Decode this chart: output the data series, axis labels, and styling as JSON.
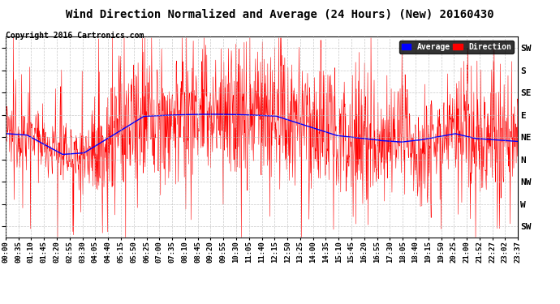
{
  "title": "Wind Direction Normalized and Average (24 Hours) (New) 20160430",
  "copyright": "Copyright 2016 Cartronics.com",
  "ytick_labels_right": [
    "SW",
    "S",
    "SE",
    "E",
    "NE",
    "N",
    "NW",
    "W",
    "SW"
  ],
  "ytick_values": [
    225,
    180,
    135,
    90,
    45,
    0,
    -45,
    -90,
    -135
  ],
  "xtick_labels": [
    "00:00",
    "00:35",
    "01:10",
    "01:45",
    "02:20",
    "02:55",
    "03:30",
    "04:05",
    "04:40",
    "05:15",
    "05:50",
    "06:25",
    "07:00",
    "07:35",
    "08:10",
    "08:45",
    "09:20",
    "09:55",
    "10:30",
    "11:05",
    "11:40",
    "12:15",
    "12:50",
    "13:25",
    "14:00",
    "14:35",
    "15:10",
    "15:45",
    "16:20",
    "16:55",
    "17:30",
    "18:05",
    "18:40",
    "19:15",
    "19:50",
    "20:25",
    "21:00",
    "21:52",
    "22:27",
    "23:02",
    "23:37"
  ],
  "background_color": "#ffffff",
  "grid_color": "#bbbbbb",
  "line_color_direction": "#ff0000",
  "line_color_average": "#0000ff",
  "legend_avg_bg": "#0000ff",
  "legend_dir_bg": "#ff0000",
  "title_fontsize": 10,
  "copyright_fontsize": 7,
  "tick_fontsize": 7,
  "ylim_min": -157,
  "ylim_max": 248
}
